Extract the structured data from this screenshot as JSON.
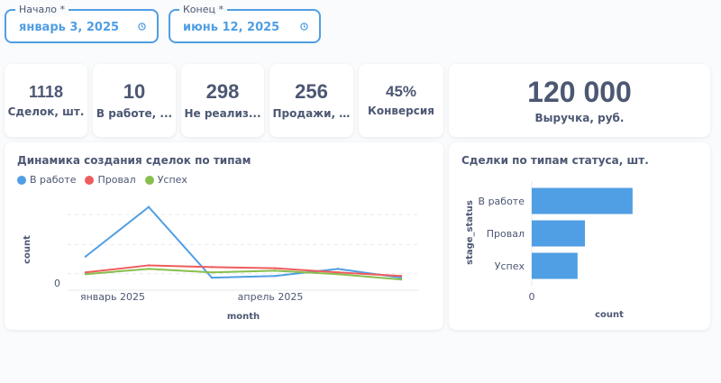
{
  "filters": {
    "start": {
      "label": "Начало *",
      "value": "январь 3, 2025"
    },
    "end": {
      "label": "Конец *",
      "value": "июнь 12, 2025"
    }
  },
  "kpis": [
    {
      "value": "1118",
      "label": "Сделок, шт."
    },
    {
      "value": "10",
      "label": "В работе, ..."
    },
    {
      "value": "298",
      "label": "Не реализ..."
    },
    {
      "value": "256",
      "label": "Продажи, ..."
    },
    {
      "value": "45%",
      "label": "Конверсия"
    },
    {
      "value": "120 000",
      "label": "Выручка, руб."
    }
  ],
  "colors": {
    "accent": "#509ee3",
    "fail": "#ef5c5c",
    "success": "#88bf4d",
    "text": "#4c5773"
  },
  "line_panel": {
    "title": "Динамика создания сделок по типам",
    "chart_data": {
      "type": "line",
      "xlabel": "month",
      "ylabel": "count",
      "x_ticks": [
        "январь 2025",
        "апрель 2025"
      ],
      "y_ticks": [
        "0"
      ],
      "x": [
        "2025-01",
        "2025-02",
        "2025-03",
        "2025-04",
        "2025-05",
        "2025-06"
      ],
      "ylim": [
        0,
        25
      ],
      "legend_position": "top-left",
      "grid": true,
      "series": [
        {
          "name": "В работе",
          "color": "#509ee3",
          "values": [
            8,
            22,
            2,
            2.5,
            4.5,
            2
          ]
        },
        {
          "name": "Провал",
          "color": "#ef5c5c",
          "values": [
            3.5,
            5.5,
            5,
            4.7,
            3.5,
            2.5
          ]
        },
        {
          "name": "Успех",
          "color": "#88bf4d",
          "values": [
            3,
            4.5,
            3.5,
            4,
            3,
            1.5
          ]
        }
      ]
    }
  },
  "bar_panel": {
    "title": "Сделки по типам статуса, шт.",
    "chart_data": {
      "type": "bar",
      "orientation": "horizontal",
      "categories": [
        "В работе",
        "Провал",
        "Успех"
      ],
      "values": [
        440,
        232,
        200
      ],
      "xlim": [
        0,
        700
      ],
      "xlabel": "count",
      "ylabel": "stage_status",
      "x_ticks": [
        "0"
      ],
      "color": "#509ee3"
    }
  }
}
